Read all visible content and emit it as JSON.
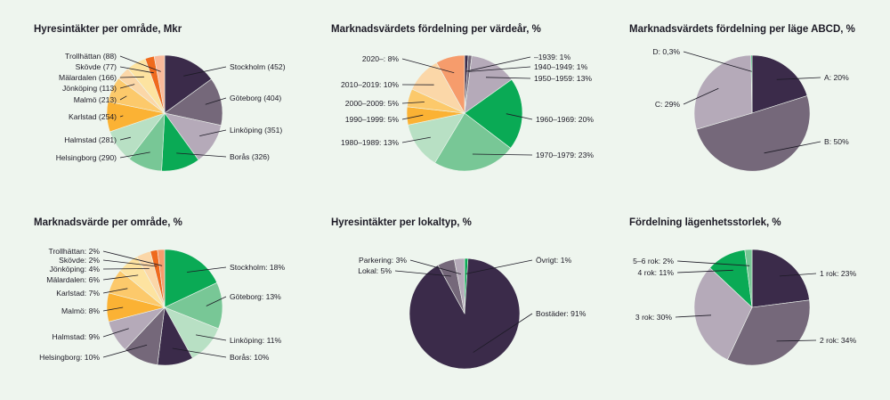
{
  "colors": {
    "background": "#eef5ee",
    "dark_purple": "#3b2b4a",
    "mauve": "#75687a",
    "lilac": "#b5aab9",
    "green": "#0aaa55",
    "mid_green": "#78c796",
    "light_green": "#b8e0c4",
    "pale_yellow": "#fde3a0",
    "amber": "#fbb234",
    "light_amber": "#fcc96b",
    "peach": "#fbd7a8",
    "orange": "#f47b20",
    "deep_orange": "#ef6a1e",
    "salmon": "#f69c6c",
    "pale_salmon": "#f9b99a"
  },
  "chart_data": [
    {
      "id": "hyresintakter-omrade",
      "type": "pie",
      "title": "Hyresintäkter per område, Mkr",
      "slices": [
        {
          "label": "Stockholm (452)",
          "value": 452,
          "color": "#3b2b4a"
        },
        {
          "label": "Göteborg (404)",
          "value": 404,
          "color": "#75687a"
        },
        {
          "label": "Linköping (351)",
          "value": 351,
          "color": "#b5aab9"
        },
        {
          "label": "Borås (326)",
          "value": 326,
          "color": "#0aaa55"
        },
        {
          "label": "Helsingborg (290)",
          "value": 290,
          "color": "#78c796"
        },
        {
          "label": "Halmstad (281)",
          "value": 281,
          "color": "#b8e0c4"
        },
        {
          "label": "Karlstad (254)",
          "value": 254,
          "color": "#fbb234"
        },
        {
          "label": "Malmö (213)",
          "value": 213,
          "color": "#fcc96b"
        },
        {
          "label": "Jönköping (113)",
          "value": 113,
          "color": "#fbd7a8"
        },
        {
          "label": "Mälardalen (166)",
          "value": 166,
          "color": "#fde3a0"
        },
        {
          "label": "Skövde (77)",
          "value": 77,
          "color": "#ef6a1e"
        },
        {
          "label": "Trollhättan (88)",
          "value": 88,
          "color": "#f9b99a"
        }
      ]
    },
    {
      "id": "marknadsvarde-vardear",
      "type": "pie",
      "title": "Marknadsvärdets fördelning per värdeår, %",
      "slices": [
        {
          "label": "–1939: 1%",
          "value": 1,
          "color": "#3b2b4a"
        },
        {
          "label": "1940–1949: 1%",
          "value": 1,
          "color": "#75687a"
        },
        {
          "label": "1950–1959: 13%",
          "value": 13,
          "color": "#b5aab9"
        },
        {
          "label": "1960–1969: 20%",
          "value": 20,
          "color": "#0aaa55"
        },
        {
          "label": "1970–1979: 23%",
          "value": 23,
          "color": "#78c796"
        },
        {
          "label": "1980–1989: 13%",
          "value": 13,
          "color": "#b8e0c4"
        },
        {
          "label": "1990–1999: 5%",
          "value": 5,
          "color": "#fbb234"
        },
        {
          "label": "2000–2009: 5%",
          "value": 5,
          "color": "#fcc96b"
        },
        {
          "label": "2010–2019: 10%",
          "value": 10,
          "color": "#fbd7a8"
        },
        {
          "label": "2020–: 8%",
          "value": 8,
          "color": "#f69c6c"
        }
      ]
    },
    {
      "id": "marknadsvarde-lage",
      "type": "pie",
      "title": "Marknadsvärdets fördelning per läge ABCD, %",
      "slices": [
        {
          "label": "A: 20%",
          "value": 20,
          "color": "#3b2b4a"
        },
        {
          "label": "B: 50%",
          "value": 50,
          "color": "#75687a"
        },
        {
          "label": "C: 29%",
          "value": 29,
          "color": "#b5aab9"
        },
        {
          "label": "D: 0,3%",
          "value": 0.3,
          "color": "#0aaa55"
        }
      ]
    },
    {
      "id": "marknadsvarde-omrade",
      "type": "pie",
      "title": "Marknadsvärde per område, %",
      "slices": [
        {
          "label": "Stockholm: 18%",
          "value": 18,
          "color": "#0aaa55"
        },
        {
          "label": "Göteborg: 13%",
          "value": 13,
          "color": "#78c796"
        },
        {
          "label": "Linköping: 11%",
          "value": 11,
          "color": "#b8e0c4"
        },
        {
          "label": "Borås: 10%",
          "value": 10,
          "color": "#3b2b4a"
        },
        {
          "label": "Helsingborg: 10%",
          "value": 10,
          "color": "#75687a"
        },
        {
          "label": "Halmstad: 9%",
          "value": 9,
          "color": "#b5aab9"
        },
        {
          "label": "Malmö: 8%",
          "value": 8,
          "color": "#fbb234"
        },
        {
          "label": "Karlstad: 7%",
          "value": 7,
          "color": "#fcc96b"
        },
        {
          "label": "Mälardalen: 6%",
          "value": 6,
          "color": "#fde3a0"
        },
        {
          "label": "Jönköping: 4%",
          "value": 4,
          "color": "#fbd7a8"
        },
        {
          "label": "Skövde: 2%",
          "value": 2,
          "color": "#ef6a1e"
        },
        {
          "label": "Trollhättan: 2%",
          "value": 2,
          "color": "#f69c6c"
        }
      ]
    },
    {
      "id": "hyresintakter-lokaltyp",
      "type": "pie",
      "title": "Hyresintäkter per lokaltyp, %",
      "slices": [
        {
          "label": "Övrigt: 1%",
          "value": 1,
          "color": "#0aaa55"
        },
        {
          "label": "Bostäder: 91%",
          "value": 91,
          "color": "#3b2b4a"
        },
        {
          "label": "Lokal: 5%",
          "value": 5,
          "color": "#75687a"
        },
        {
          "label": "Parkering: 3%",
          "value": 3,
          "color": "#b5aab9"
        }
      ]
    },
    {
      "id": "lagenhetsstorlek",
      "type": "pie",
      "title": "Fördelning lägenhetsstorlek, %",
      "slices": [
        {
          "label": "1 rok: 23%",
          "value": 23,
          "color": "#3b2b4a"
        },
        {
          "label": "2 rok: 34%",
          "value": 34,
          "color": "#75687a"
        },
        {
          "label": "3 rok: 30%",
          "value": 30,
          "color": "#b5aab9"
        },
        {
          "label": "4 rok: 11%",
          "value": 11,
          "color": "#0aaa55"
        },
        {
          "label": "5–6 rok: 2%",
          "value": 2,
          "color": "#78c796"
        }
      ]
    }
  ]
}
